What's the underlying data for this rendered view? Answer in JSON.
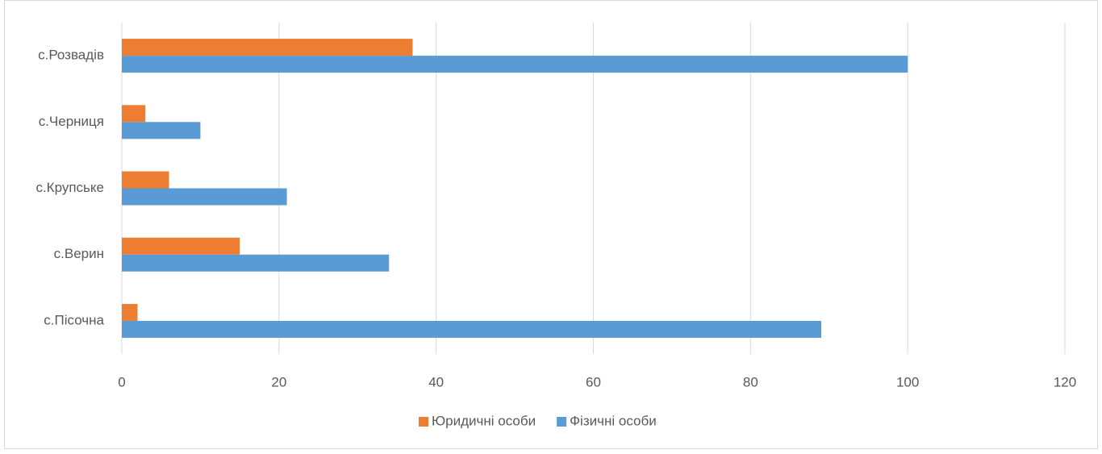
{
  "chart_data": {
    "type": "bar",
    "orientation": "horizontal",
    "categories": [
      "с.Розвадів",
      "с.Черниця",
      "с.Крупське",
      "с.Верин",
      "с.Пісочна"
    ],
    "series": [
      {
        "name": "Юридичні особи",
        "color": "#ed7d31",
        "values": [
          37,
          3,
          6,
          15,
          2
        ]
      },
      {
        "name": "Фізичні особи",
        "color": "#5b9bd5",
        "values": [
          100,
          10,
          21,
          34,
          89
        ]
      }
    ],
    "xlim": [
      0,
      120
    ],
    "xticks": [
      0,
      20,
      40,
      60,
      80,
      100,
      120
    ],
    "grid": true,
    "legend": "bottom"
  }
}
